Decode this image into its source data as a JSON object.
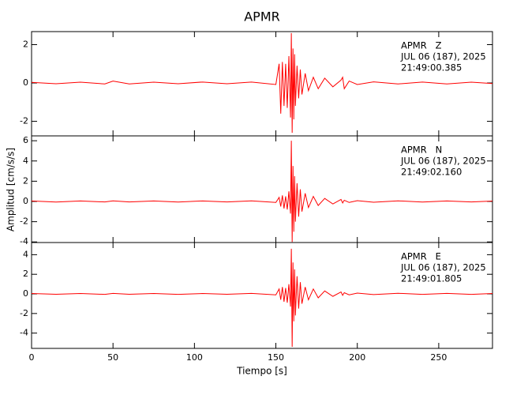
{
  "title": "APMR",
  "x_label": "Tiempo [s]",
  "y_label": "Amplitud [cm/s/s]",
  "chart_data": [
    {
      "type": "line",
      "annotations": [
        "APMR   Z",
        "JUL 06 (187), 2025",
        "21:49:00.385"
      ],
      "xlim": [
        0,
        283
      ],
      "xticks": [
        0,
        50,
        100,
        150,
        200,
        250
      ],
      "ylim": [
        -2.76,
        2.68
      ],
      "yticks": [
        -2,
        0,
        2
      ],
      "x": [
        0,
        15,
        30,
        45,
        50,
        60,
        75,
        90,
        105,
        120,
        135,
        150,
        152,
        153,
        154,
        155,
        156,
        157,
        158,
        159,
        159.5,
        160,
        160.5,
        161,
        161.5,
        162,
        163,
        164,
        165,
        166,
        168,
        170,
        173,
        176,
        180,
        185,
        190,
        191,
        192,
        195,
        200,
        210,
        225,
        240,
        255,
        270,
        283
      ],
      "series": [
        {
          "color": "#ff0000",
          "values": [
            0.03,
            -0.04,
            0.04,
            -0.05,
            0.1,
            -0.05,
            0.04,
            -0.04,
            0.05,
            -0.04,
            0.05,
            -0.08,
            1.0,
            -1.6,
            1.1,
            -1.2,
            1.0,
            -1.3,
            1.4,
            -1.8,
            2.6,
            -2.6,
            1.8,
            -1.9,
            1.5,
            -1.2,
            0.9,
            -0.8,
            0.7,
            -0.6,
            0.5,
            -0.4,
            0.3,
            -0.3,
            0.25,
            -0.2,
            0.15,
            0.3,
            -0.3,
            0.1,
            -0.08,
            0.06,
            -0.05,
            0.05,
            -0.05,
            0.04,
            -0.03
          ]
        }
      ]
    },
    {
      "type": "line",
      "annotations": [
        "APMR   N",
        "JUL 06 (187), 2025",
        "21:49:02.160"
      ],
      "xlim": [
        0,
        283
      ],
      "xticks": [
        0,
        50,
        100,
        150,
        200,
        250
      ],
      "ylim": [
        -4.06,
        6.48
      ],
      "yticks": [
        -4,
        -2,
        0,
        2,
        4,
        6
      ],
      "x": [
        0,
        15,
        30,
        45,
        50,
        60,
        75,
        90,
        105,
        120,
        135,
        150,
        152,
        153,
        154,
        155,
        156,
        157,
        158,
        159,
        159.5,
        160,
        160.5,
        161,
        161.5,
        162,
        163,
        164,
        165,
        166,
        168,
        170,
        173,
        176,
        180,
        185,
        190,
        191,
        192,
        195,
        200,
        210,
        225,
        240,
        255,
        270,
        283
      ],
      "series": [
        {
          "color": "#ff0000",
          "values": [
            0.05,
            -0.06,
            0.05,
            -0.05,
            0.06,
            -0.05,
            0.05,
            -0.06,
            0.05,
            -0.05,
            0.06,
            -0.1,
            0.4,
            -0.5,
            0.6,
            -0.7,
            0.5,
            -0.8,
            1.0,
            -1.2,
            6.0,
            -4.0,
            3.5,
            -3.0,
            2.5,
            -2.0,
            1.8,
            -1.5,
            1.2,
            -1.0,
            0.8,
            -0.6,
            0.5,
            -0.4,
            0.3,
            -0.25,
            0.2,
            -0.15,
            0.12,
            -0.1,
            0.08,
            -0.08,
            0.06,
            -0.06,
            0.05,
            -0.05,
            0.04
          ]
        }
      ]
    },
    {
      "type": "line",
      "annotations": [
        "APMR   E",
        "JUL 06 (187), 2025",
        "21:49:01.805"
      ],
      "xlim": [
        0,
        283
      ],
      "xticks": [
        0,
        50,
        100,
        150,
        200,
        250
      ],
      "ylim": [
        -5.56,
        5.24
      ],
      "yticks": [
        -4,
        -2,
        0,
        2,
        4
      ],
      "x": [
        0,
        15,
        30,
        45,
        50,
        60,
        75,
        90,
        105,
        120,
        135,
        150,
        152,
        153,
        154,
        155,
        156,
        157,
        158,
        159,
        159.5,
        160,
        160.5,
        161,
        161.5,
        162,
        163,
        164,
        165,
        166,
        168,
        170,
        173,
        176,
        180,
        185,
        190,
        191,
        192,
        195,
        200,
        210,
        225,
        240,
        255,
        270,
        283
      ],
      "series": [
        {
          "color": "#ff0000",
          "values": [
            0.04,
            -0.04,
            0.04,
            -0.05,
            0.05,
            -0.04,
            0.04,
            -0.05,
            0.04,
            -0.04,
            0.05,
            -0.1,
            0.5,
            -0.6,
            0.7,
            -0.8,
            0.6,
            -0.9,
            1.0,
            -1.3,
            4.6,
            -5.4,
            3.2,
            -2.8,
            2.5,
            -2.2,
            1.8,
            -1.5,
            1.2,
            -1.0,
            0.7,
            -0.6,
            0.5,
            -0.4,
            0.3,
            -0.25,
            0.2,
            -0.15,
            0.12,
            -0.1,
            0.08,
            -0.07,
            0.06,
            -0.05,
            0.05,
            -0.05,
            0.04
          ]
        }
      ]
    }
  ]
}
